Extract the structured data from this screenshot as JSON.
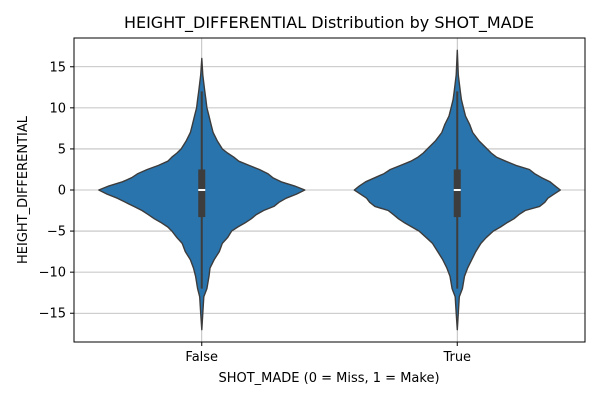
{
  "chart_data": {
    "type": "violin",
    "title": "HEIGHT_DIFFERENTIAL Distribution by SHOT_MADE",
    "xlabel": "SHOT_MADE (0 = Miss, 1 = Make)",
    "ylabel": "HEIGHT_DIFFERENTIAL",
    "categories": [
      "False",
      "True"
    ],
    "ylim": [
      -18.5,
      18.5
    ],
    "yticks": [
      -15,
      -10,
      -5,
      0,
      5,
      10,
      15
    ],
    "grid": true,
    "fill_color": "#2a74ad",
    "edge_color": "#3c3c3c",
    "box_color": "#3d3d3d",
    "median_color": "#ffffff",
    "violins": [
      {
        "category": "False",
        "quartiles": [
          -3.3,
          0.0,
          2.5
        ],
        "whiskers": [
          -12.0,
          12.0
        ],
        "range": [
          -17.0,
          16.0
        ],
        "density_right": [
          [
            -17.0,
            0.0
          ],
          [
            -15.0,
            0.01
          ],
          [
            -13.0,
            0.02
          ],
          [
            -12.0,
            0.05
          ],
          [
            -10.5,
            0.07
          ],
          [
            -9.5,
            0.08
          ],
          [
            -8.5,
            0.12
          ],
          [
            -7.5,
            0.17
          ],
          [
            -6.5,
            0.2
          ],
          [
            -5.8,
            0.25
          ],
          [
            -5.0,
            0.29
          ],
          [
            -4.5,
            0.35
          ],
          [
            -4.0,
            0.42
          ],
          [
            -3.5,
            0.48
          ],
          [
            -3.0,
            0.53
          ],
          [
            -2.5,
            0.6
          ],
          [
            -2.0,
            0.7
          ],
          [
            -1.5,
            0.75
          ],
          [
            -1.0,
            0.82
          ],
          [
            -0.5,
            0.92
          ],
          [
            0.0,
            1.0
          ],
          [
            0.5,
            0.9
          ],
          [
            1.0,
            0.77
          ],
          [
            1.5,
            0.69
          ],
          [
            2.0,
            0.64
          ],
          [
            2.5,
            0.56
          ],
          [
            3.0,
            0.46
          ],
          [
            3.5,
            0.36
          ],
          [
            4.0,
            0.31
          ],
          [
            4.5,
            0.25
          ],
          [
            5.0,
            0.2
          ],
          [
            6.0,
            0.15
          ],
          [
            7.0,
            0.11
          ],
          [
            8.0,
            0.09
          ],
          [
            9.0,
            0.07
          ],
          [
            10.0,
            0.05
          ],
          [
            11.0,
            0.04
          ],
          [
            12.0,
            0.03
          ],
          [
            13.0,
            0.02
          ],
          [
            14.0,
            0.01
          ],
          [
            16.0,
            0.0
          ]
        ],
        "density_left": [
          [
            -17.0,
            0.0
          ],
          [
            -15.0,
            0.01
          ],
          [
            -13.0,
            0.02
          ],
          [
            -12.0,
            0.04
          ],
          [
            -10.5,
            0.06
          ],
          [
            -9.5,
            0.08
          ],
          [
            -8.5,
            0.11
          ],
          [
            -7.5,
            0.16
          ],
          [
            -6.5,
            0.19
          ],
          [
            -5.8,
            0.24
          ],
          [
            -5.0,
            0.29
          ],
          [
            -4.5,
            0.33
          ],
          [
            -4.0,
            0.39
          ],
          [
            -3.5,
            0.46
          ],
          [
            -3.0,
            0.52
          ],
          [
            -2.5,
            0.58
          ],
          [
            -2.0,
            0.66
          ],
          [
            -1.5,
            0.74
          ],
          [
            -1.0,
            0.82
          ],
          [
            -0.5,
            0.92
          ],
          [
            0.0,
            1.0
          ],
          [
            0.5,
            0.9
          ],
          [
            1.0,
            0.77
          ],
          [
            1.5,
            0.68
          ],
          [
            2.0,
            0.62
          ],
          [
            2.5,
            0.53
          ],
          [
            3.0,
            0.42
          ],
          [
            3.5,
            0.33
          ],
          [
            4.0,
            0.29
          ],
          [
            4.5,
            0.24
          ],
          [
            5.0,
            0.2
          ],
          [
            6.0,
            0.15
          ],
          [
            7.0,
            0.11
          ],
          [
            8.0,
            0.09
          ],
          [
            9.0,
            0.07
          ],
          [
            10.0,
            0.05
          ],
          [
            11.0,
            0.04
          ],
          [
            12.0,
            0.03
          ],
          [
            13.0,
            0.02
          ],
          [
            14.0,
            0.01
          ],
          [
            16.0,
            0.0
          ]
        ]
      },
      {
        "category": "True",
        "quartiles": [
          -3.3,
          0.0,
          2.5
        ],
        "whiskers": [
          -12.0,
          12.0
        ],
        "range": [
          -17.0,
          17.0
        ],
        "density_right": [
          [
            -17.0,
            0.0
          ],
          [
            -15.0,
            0.01
          ],
          [
            -13.0,
            0.02
          ],
          [
            -12.0,
            0.05
          ],
          [
            -10.5,
            0.07
          ],
          [
            -9.5,
            0.1
          ],
          [
            -8.5,
            0.14
          ],
          [
            -7.5,
            0.18
          ],
          [
            -6.5,
            0.23
          ],
          [
            -5.8,
            0.28
          ],
          [
            -5.0,
            0.35
          ],
          [
            -4.5,
            0.42
          ],
          [
            -4.0,
            0.48
          ],
          [
            -3.5,
            0.55
          ],
          [
            -3.0,
            0.6
          ],
          [
            -2.5,
            0.66
          ],
          [
            -2.0,
            0.8
          ],
          [
            -1.5,
            0.85
          ],
          [
            -1.0,
            0.88
          ],
          [
            -0.5,
            0.94
          ],
          [
            0.0,
            1.0
          ],
          [
            0.5,
            0.95
          ],
          [
            1.0,
            0.9
          ],
          [
            1.5,
            0.82
          ],
          [
            2.0,
            0.75
          ],
          [
            2.5,
            0.7
          ],
          [
            3.0,
            0.57
          ],
          [
            3.5,
            0.47
          ],
          [
            4.0,
            0.38
          ],
          [
            4.5,
            0.33
          ],
          [
            5.0,
            0.29
          ],
          [
            6.0,
            0.21
          ],
          [
            7.0,
            0.15
          ],
          [
            8.0,
            0.12
          ],
          [
            9.0,
            0.08
          ],
          [
            10.0,
            0.06
          ],
          [
            11.0,
            0.04
          ],
          [
            12.0,
            0.03
          ],
          [
            13.0,
            0.02
          ],
          [
            14.0,
            0.01
          ],
          [
            17.0,
            0.0
          ]
        ],
        "density_left": [
          [
            -17.0,
            0.0
          ],
          [
            -15.0,
            0.01
          ],
          [
            -13.0,
            0.02
          ],
          [
            -12.0,
            0.05
          ],
          [
            -10.5,
            0.07
          ],
          [
            -9.5,
            0.1
          ],
          [
            -8.5,
            0.14
          ],
          [
            -7.5,
            0.19
          ],
          [
            -6.5,
            0.24
          ],
          [
            -5.8,
            0.3
          ],
          [
            -5.0,
            0.37
          ],
          [
            -4.5,
            0.44
          ],
          [
            -4.0,
            0.51
          ],
          [
            -3.5,
            0.57
          ],
          [
            -3.0,
            0.62
          ],
          [
            -2.5,
            0.67
          ],
          [
            -2.0,
            0.8
          ],
          [
            -1.5,
            0.85
          ],
          [
            -1.0,
            0.88
          ],
          [
            -0.5,
            0.94
          ],
          [
            0.0,
            1.0
          ],
          [
            0.5,
            0.95
          ],
          [
            1.0,
            0.89
          ],
          [
            1.5,
            0.8
          ],
          [
            2.0,
            0.71
          ],
          [
            2.5,
            0.65
          ],
          [
            3.0,
            0.55
          ],
          [
            3.5,
            0.45
          ],
          [
            4.0,
            0.38
          ],
          [
            4.5,
            0.33
          ],
          [
            5.0,
            0.29
          ],
          [
            6.0,
            0.21
          ],
          [
            7.0,
            0.15
          ],
          [
            8.0,
            0.12
          ],
          [
            9.0,
            0.08
          ],
          [
            10.0,
            0.06
          ],
          [
            11.0,
            0.04
          ],
          [
            12.0,
            0.03
          ],
          [
            13.0,
            0.02
          ],
          [
            14.0,
            0.01
          ],
          [
            17.0,
            0.0
          ]
        ]
      }
    ]
  }
}
